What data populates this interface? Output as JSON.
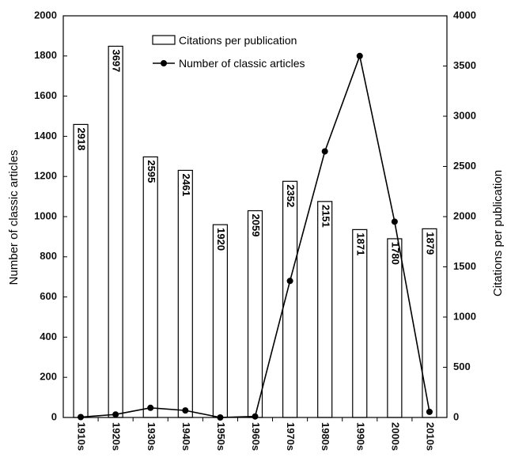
{
  "chart_data": {
    "type": "bar",
    "categories": [
      "1910s",
      "1920s",
      "1930s",
      "1940s",
      "1950s",
      "1960s",
      "1970s",
      "1980s",
      "1990s",
      "2000s",
      "2010s"
    ],
    "series": [
      {
        "name": "Citations per publication",
        "type": "bar",
        "axis": "right",
        "values": [
          2918,
          3697,
          2595,
          2461,
          1920,
          2059,
          2352,
          2151,
          1871,
          1780,
          1879
        ],
        "labels": [
          "2918",
          "3697",
          "2595",
          "2461",
          "1920",
          "2059",
          "2352",
          "2151",
          "1871",
          "1780",
          "1879"
        ]
      },
      {
        "name": "Number of classic articles",
        "type": "line",
        "axis": "left",
        "values": [
          2,
          15,
          48,
          35,
          0,
          5,
          680,
          1325,
          1800,
          975,
          28
        ]
      }
    ],
    "ylabel": "Number of classic articles",
    "y2label": "Citations per publication",
    "ylim": [
      0,
      2000
    ],
    "y2lim": [
      0,
      4000
    ],
    "yticks": [
      "0",
      "200",
      "400",
      "600",
      "800",
      "1000",
      "1200",
      "1400",
      "1600",
      "1800",
      "2000"
    ],
    "y2ticks": [
      "0",
      "500",
      "1000",
      "1500",
      "2000",
      "2500",
      "3000",
      "3500",
      "4000"
    ],
    "legend": "top-center",
    "grid": false
  }
}
